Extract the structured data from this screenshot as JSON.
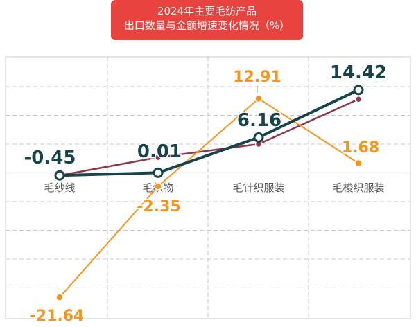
{
  "title": {
    "line1": "2024年主要毛纺产品",
    "line2": "出口数量与金额增速变化情况（%）"
  },
  "colors": {
    "title_bg": "#e8433e",
    "series_dark": "#17434a",
    "series_maroon": "#8c3a4b",
    "series_orange": "#f7941d",
    "grid": "#c8c8c8"
  },
  "chart_data": {
    "type": "line",
    "categories": [
      "毛纱线",
      "毛织物",
      "毛针织服装",
      "毛梭织服装"
    ],
    "ylim": [
      -25,
      20
    ],
    "grid": true,
    "series": [
      {
        "key": "dark",
        "values": [
          -0.45,
          0.01,
          6.16,
          14.42
        ],
        "labels": [
          "-0.45",
          "0.01",
          "6.16",
          "14.42"
        ]
      },
      {
        "key": "maroon",
        "values": [
          -0.45,
          2.7,
          5.0,
          12.8
        ],
        "labels": [
          "",
          "",
          "",
          ""
        ]
      },
      {
        "key": "orange",
        "values": [
          -21.64,
          -2.35,
          12.91,
          1.68
        ],
        "labels": [
          "-21.64",
          "-2.35",
          "12.91",
          "1.68"
        ]
      }
    ]
  }
}
